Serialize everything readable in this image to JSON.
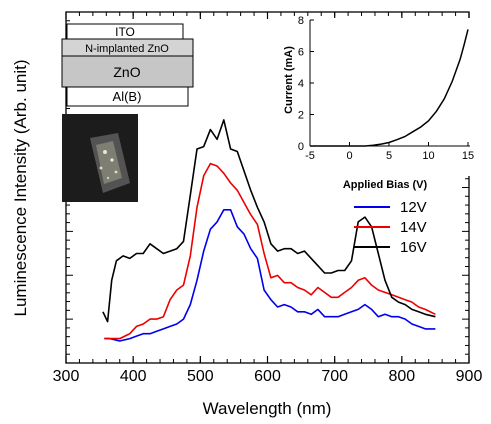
{
  "chart_data": [
    {
      "type": "line",
      "xlabel": "Wavelength (nm)",
      "ylabel": "Luminescence Intensity (Arb. unit)",
      "xlim": [
        300,
        900
      ],
      "xticks": [
        "300",
        "400",
        "500",
        "600",
        "700",
        "800",
        "900"
      ],
      "yticks": [],
      "ylim": [
        0,
        100
      ],
      "legend_position": "right",
      "series": [
        {
          "name": "12V",
          "color": "#0000ee",
          "x": [
            357,
            365,
            380,
            395,
            405,
            415,
            425,
            435,
            445,
            455,
            465,
            475,
            485,
            495,
            505,
            515,
            525,
            535,
            545,
            555,
            565,
            575,
            585,
            595,
            605,
            615,
            625,
            635,
            645,
            655,
            665,
            675,
            685,
            695,
            705,
            715,
            725,
            735,
            745,
            755,
            765,
            775,
            785,
            795,
            805,
            815,
            825,
            835,
            850
          ],
          "y": [
            1,
            1,
            0,
            1,
            2,
            3,
            3,
            4,
            5,
            6,
            7,
            9,
            15,
            25,
            37,
            46,
            49,
            54,
            54,
            47,
            44,
            38,
            34,
            21,
            17,
            14,
            15,
            14,
            12,
            12,
            11,
            13,
            10,
            10,
            10,
            11,
            12,
            13,
            15,
            13,
            10,
            11,
            10,
            10,
            9,
            7,
            6,
            5,
            5
          ]
        },
        {
          "name": "14V",
          "color": "#ee0000",
          "x": [
            357,
            365,
            380,
            395,
            405,
            415,
            425,
            435,
            445,
            455,
            465,
            475,
            485,
            495,
            505,
            515,
            525,
            535,
            545,
            555,
            565,
            575,
            585,
            595,
            605,
            615,
            625,
            635,
            645,
            655,
            665,
            675,
            685,
            695,
            705,
            715,
            725,
            735,
            745,
            755,
            765,
            775,
            785,
            795,
            805,
            815,
            825,
            835,
            850
          ],
          "y": [
            1,
            1,
            1,
            3,
            6,
            7,
            9,
            9,
            10,
            17,
            21,
            23,
            35,
            55,
            68,
            73,
            72,
            69,
            65,
            62,
            57,
            52,
            48,
            36,
            26,
            27,
            24,
            24,
            22,
            21,
            19,
            22,
            20,
            18,
            18,
            20,
            22,
            25,
            26,
            23,
            21,
            20,
            19,
            18,
            17,
            16,
            14,
            13,
            11
          ]
        },
        {
          "name": "16V",
          "color": "#000000",
          "x": [
            355,
            362,
            368,
            375,
            385,
            395,
            405,
            415,
            425,
            435,
            445,
            455,
            465,
            475,
            485,
            495,
            505,
            515,
            525,
            535,
            545,
            555,
            565,
            575,
            585,
            595,
            605,
            615,
            625,
            635,
            645,
            655,
            665,
            675,
            685,
            695,
            705,
            715,
            725,
            735,
            745,
            755,
            765,
            775,
            785,
            795,
            805,
            815,
            825,
            835,
            850
          ],
          "y": [
            12,
            8,
            25,
            33,
            35,
            34,
            36,
            36,
            40,
            38,
            36,
            37,
            38,
            41,
            60,
            79,
            80,
            87,
            83,
            91,
            79,
            78,
            70,
            62,
            55,
            49,
            40,
            37,
            38,
            38,
            36,
            37,
            34,
            31,
            28,
            28,
            29,
            29,
            33,
            49,
            51,
            47,
            36,
            25,
            18,
            16,
            15,
            13,
            12,
            11,
            10
          ]
        }
      ]
    },
    {
      "type": "line",
      "xlabel": "Applied Bias (V)",
      "ylabel": "Current (mA)",
      "xlim": [
        -5,
        15
      ],
      "ylim": [
        0,
        8
      ],
      "xticks": [
        "-5",
        "0",
        "5",
        "10",
        "15"
      ],
      "yticks": [
        "0",
        "2",
        "4",
        "6",
        "8"
      ],
      "series": [
        {
          "color": "#000000",
          "x": [
            -5,
            0,
            2,
            3,
            4,
            5,
            6,
            7,
            8,
            9,
            10,
            11,
            12,
            13,
            14,
            14.5,
            15
          ],
          "y": [
            0,
            0,
            0,
            0.05,
            0.12,
            0.22,
            0.4,
            0.6,
            0.9,
            1.2,
            1.6,
            2.2,
            3.0,
            4.1,
            5.5,
            6.4,
            7.4
          ]
        }
      ]
    }
  ],
  "device_stack": {
    "layers": [
      "ITO",
      "N-implanted ZnO",
      "ZnO",
      "Al(B)"
    ],
    "colors": {
      "ito": "#ffffff",
      "n_implanted": "#d4d4d4",
      "zno": "#c6c6c6",
      "al": "#ffffff"
    }
  },
  "photo_inset": {
    "description_icon": "device-emission-photo"
  }
}
